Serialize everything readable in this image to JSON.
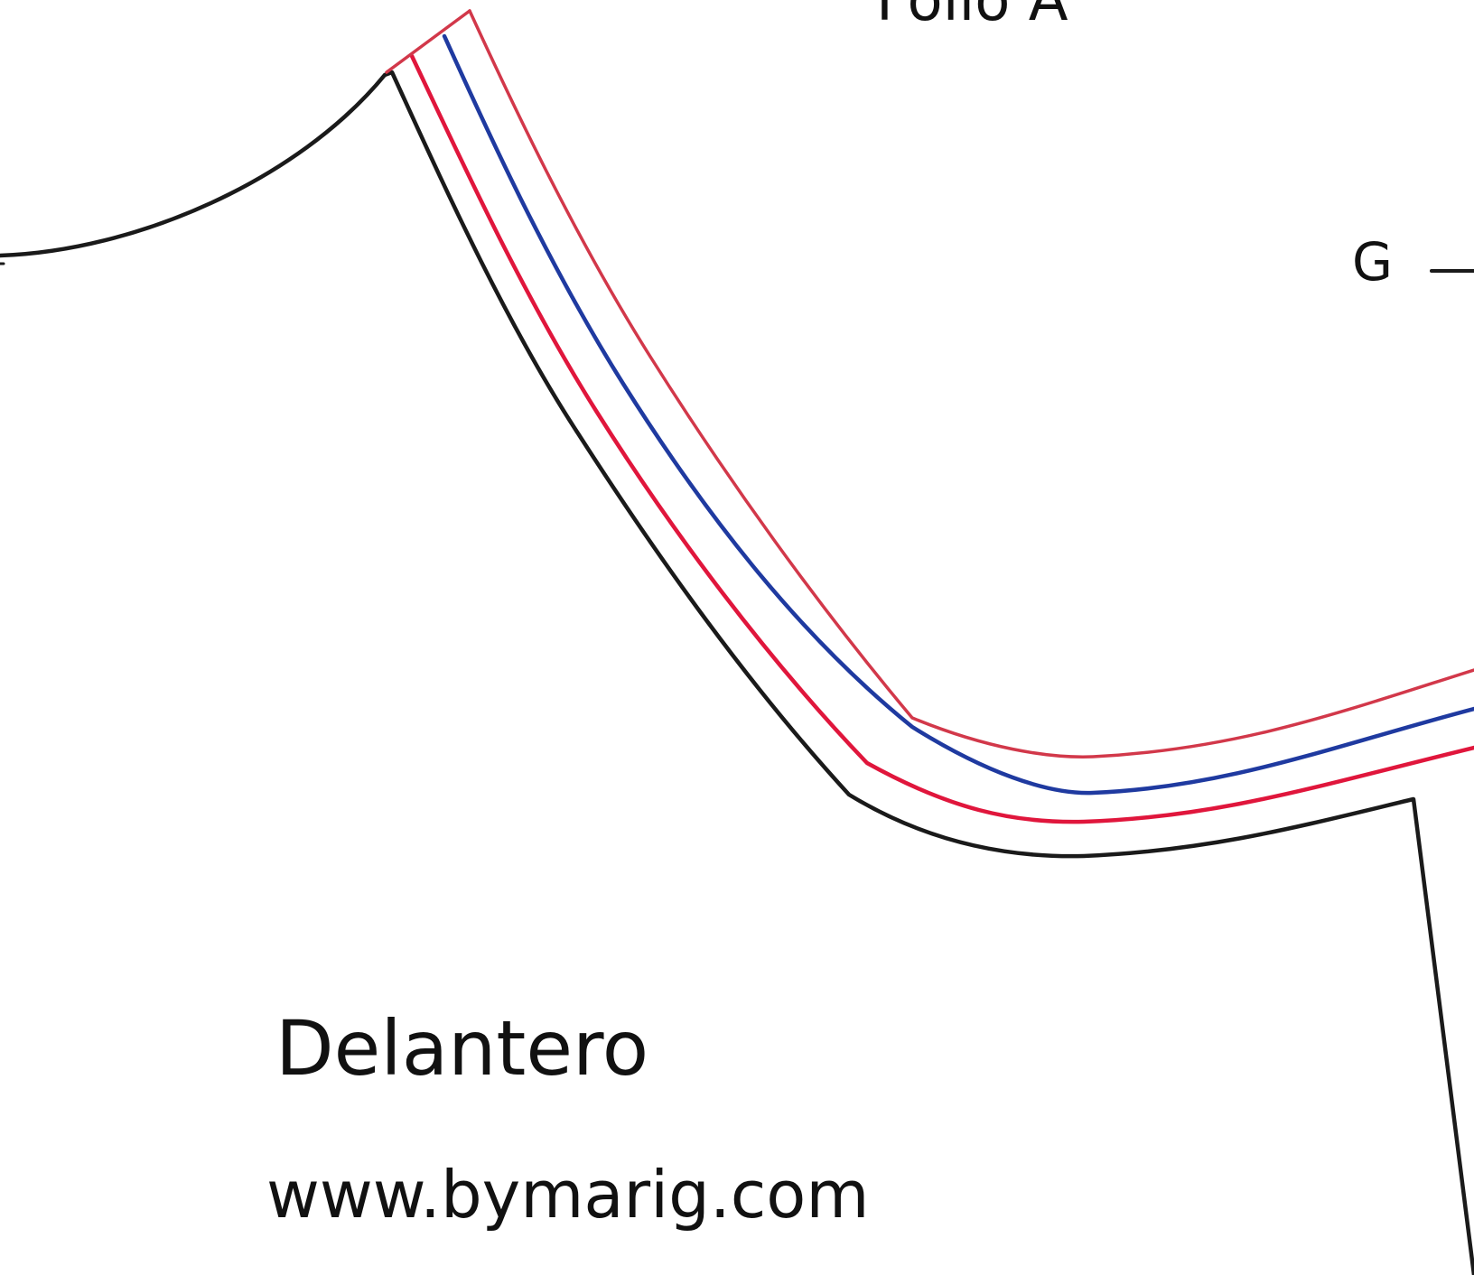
{
  "sheet": {
    "background": "#ffffff"
  },
  "labels": {
    "folio": "Folio A",
    "point": "G",
    "piece_name": "Delantero",
    "website": "www.bymarig.com"
  },
  "colors": {
    "pattern_outline": "#1a1a1a",
    "seam_red": "#e0163c",
    "guide_blue": "#1f3aa0",
    "outer_red": "#d2384a"
  }
}
